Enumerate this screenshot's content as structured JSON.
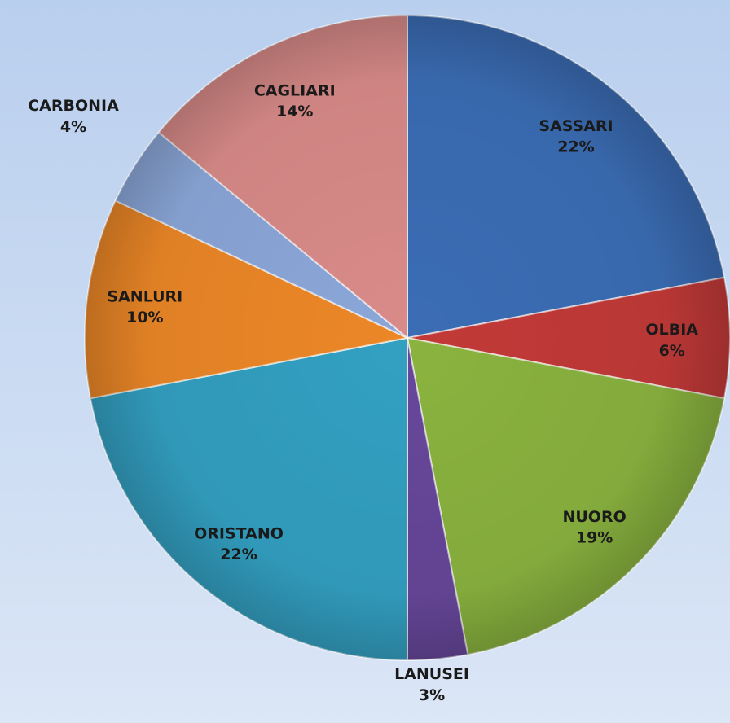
{
  "chart_data": {
    "type": "pie",
    "categories": [
      "SASSARI",
      "OLBIA",
      "NUORO",
      "LANUSEI",
      "ORISTANO",
      "SANLURI",
      "CARBONIA",
      "CAGLIARI"
    ],
    "values": [
      22,
      6,
      19,
      3,
      22,
      10,
      4,
      14
    ],
    "value_labels": [
      "22%",
      "6%",
      "19%",
      "3%",
      "22%",
      "10%",
      "4%",
      "14%"
    ],
    "colors": [
      "#3b6db5",
      "#c23a38",
      "#8ab33f",
      "#67479a",
      "#33a0c2",
      "#ec8727",
      "#8ba7d9",
      "#d98b89"
    ]
  }
}
